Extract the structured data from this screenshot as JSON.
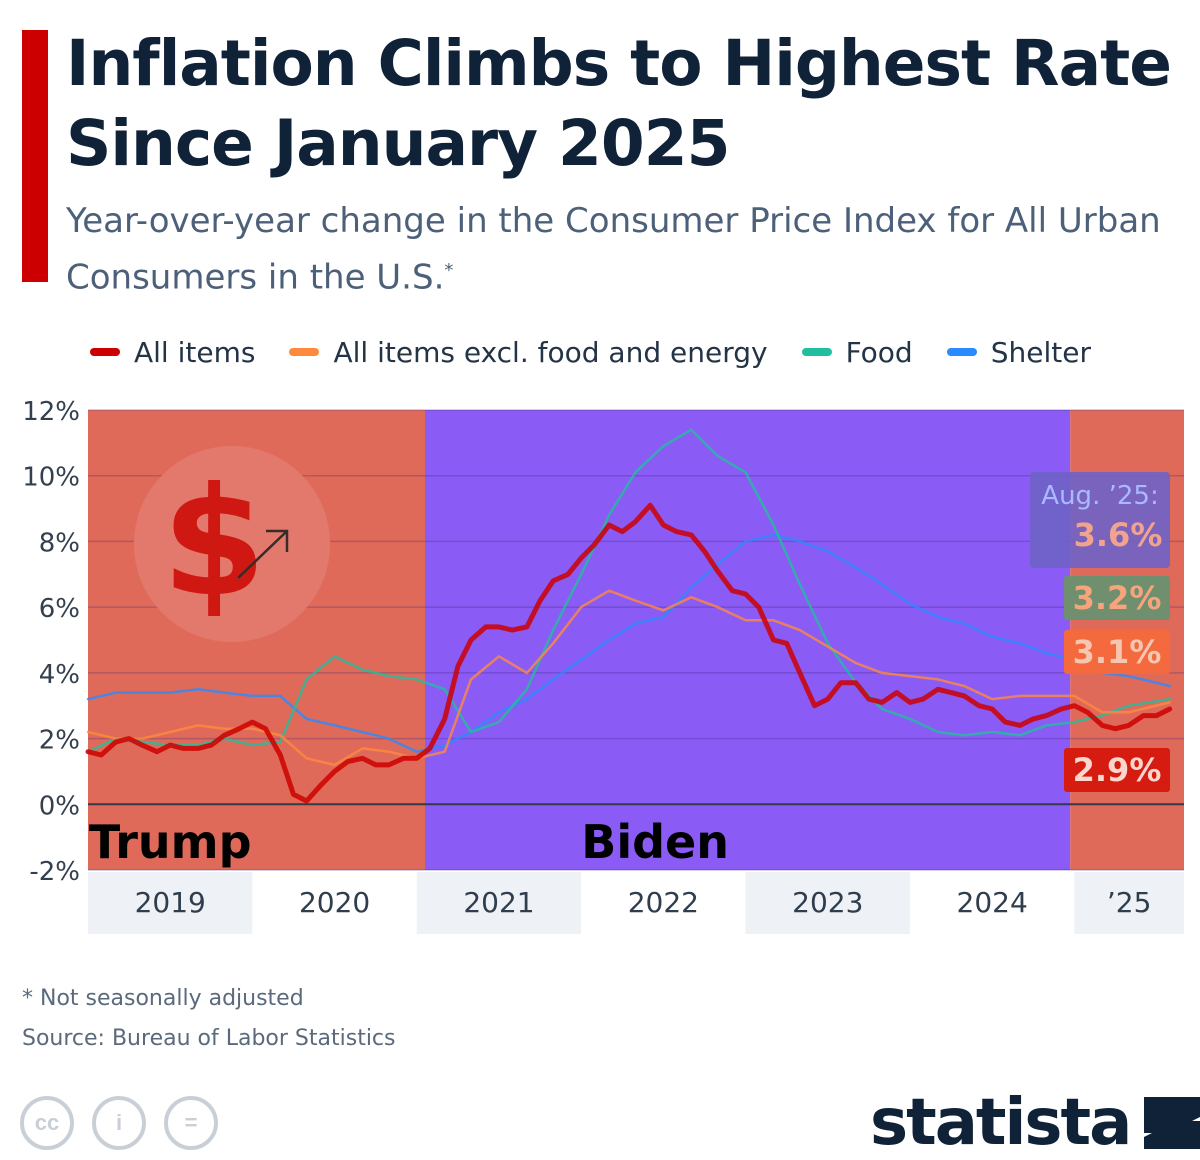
{
  "header": {
    "title": "Inflation Climbs to Highest Rate Since January 2025",
    "subtitle": "Year-over-year change in the Consumer Price Index for All Urban Consumers in the U.S.",
    "subtitle_mark": "*",
    "accent_color": "#cc0000"
  },
  "legend": [
    {
      "label": "All items",
      "color": "#cc0000"
    },
    {
      "label": "All items excl. food and energy",
      "color": "#ff8a3d"
    },
    {
      "label": "Food",
      "color": "#1fbf9f"
    },
    {
      "label": "Shelter",
      "color": "#2a8bff"
    }
  ],
  "footer": {
    "footnote": "* Not seasonally adjusted",
    "source": "Source: Bureau of Labor Statistics",
    "brand": "statista",
    "license_icons": [
      "cc-icon",
      "attribution-icon",
      "no-derivatives-icon"
    ],
    "license_glyphs": [
      "cc",
      "i",
      "="
    ]
  },
  "chart_data": {
    "type": "line",
    "title": "Inflation Climbs to Highest Rate Since January 2025",
    "ylabel": "",
    "xlabel": "",
    "ylim": [
      -2,
      12
    ],
    "xlim": [
      2019.0,
      2025.667
    ],
    "y_ticks": [
      12,
      10,
      8,
      6,
      4,
      2,
      0,
      -2
    ],
    "y_tick_labels": [
      "12%",
      "10%",
      "8%",
      "6%",
      "4%",
      "2%",
      "0%",
      "-2%"
    ],
    "x_categories": [
      {
        "label": "2019",
        "start": 2019.0,
        "end": 2020.0
      },
      {
        "label": "2020",
        "start": 2020.0,
        "end": 2021.0
      },
      {
        "label": "2021",
        "start": 2021.0,
        "end": 2022.0
      },
      {
        "label": "2022",
        "start": 2022.0,
        "end": 2023.0
      },
      {
        "label": "2023",
        "start": 2023.0,
        "end": 2024.0
      },
      {
        "label": "2024",
        "start": 2024.0,
        "end": 2025.0
      },
      {
        "label": "’25",
        "start": 2025.0,
        "end": 2025.667
      }
    ],
    "periods": [
      {
        "label": "Trump",
        "start": 2019.0,
        "end": 2021.05,
        "color": "#e06a5a",
        "label_x": 2019.5
      },
      {
        "label": "Biden",
        "start": 2021.05,
        "end": 2024.975,
        "color": "#8a5cf5",
        "label_x": 2022.45
      },
      {
        "label": "",
        "start": 2024.975,
        "end": 2025.667,
        "color": "#e06a5a",
        "label_x": 2025.3
      }
    ],
    "series": [
      {
        "name": "All items",
        "color": "#cc0000",
        "width": 5,
        "x": [
          2019.0,
          2019.08,
          2019.17,
          2019.25,
          2019.33,
          2019.42,
          2019.5,
          2019.58,
          2019.67,
          2019.75,
          2019.83,
          2019.92,
          2020.0,
          2020.08,
          2020.17,
          2020.25,
          2020.33,
          2020.42,
          2020.5,
          2020.58,
          2020.67,
          2020.75,
          2020.83,
          2020.92,
          2021.0,
          2021.08,
          2021.17,
          2021.25,
          2021.33,
          2021.42,
          2021.5,
          2021.58,
          2021.67,
          2021.75,
          2021.83,
          2021.92,
          2022.0,
          2022.08,
          2022.17,
          2022.25,
          2022.33,
          2022.42,
          2022.5,
          2022.58,
          2022.67,
          2022.75,
          2022.83,
          2022.92,
          2023.0,
          2023.08,
          2023.17,
          2023.25,
          2023.33,
          2023.42,
          2023.5,
          2023.58,
          2023.67,
          2023.75,
          2023.83,
          2023.92,
          2024.0,
          2024.08,
          2024.17,
          2024.25,
          2024.33,
          2024.42,
          2024.5,
          2024.58,
          2024.67,
          2024.75,
          2024.83,
          2024.92,
          2025.0,
          2025.08,
          2025.17,
          2025.25,
          2025.33,
          2025.42,
          2025.5,
          2025.58
        ],
        "values": [
          1.6,
          1.5,
          1.9,
          2.0,
          1.8,
          1.6,
          1.8,
          1.7,
          1.7,
          1.8,
          2.1,
          2.3,
          2.5,
          2.3,
          1.5,
          0.3,
          0.1,
          0.6,
          1.0,
          1.3,
          1.4,
          1.2,
          1.2,
          1.4,
          1.4,
          1.7,
          2.6,
          4.2,
          5.0,
          5.4,
          5.4,
          5.3,
          5.4,
          6.2,
          6.8,
          7.0,
          7.5,
          7.9,
          8.5,
          8.3,
          8.6,
          9.1,
          8.5,
          8.3,
          8.2,
          7.7,
          7.1,
          6.5,
          6.4,
          6.0,
          5.0,
          4.9,
          4.0,
          3.0,
          3.2,
          3.7,
          3.7,
          3.2,
          3.1,
          3.4,
          3.1,
          3.2,
          3.5,
          3.4,
          3.3,
          3.0,
          2.9,
          2.5,
          2.4,
          2.6,
          2.7,
          2.9,
          3.0,
          2.8,
          2.4,
          2.3,
          2.4,
          2.7,
          2.7,
          2.9
        ]
      },
      {
        "name": "All items excl. food and energy",
        "color": "#ff8a3d",
        "width": 2.5,
        "x": [
          2019.0,
          2019.17,
          2019.33,
          2019.5,
          2019.67,
          2019.83,
          2020.0,
          2020.17,
          2020.33,
          2020.5,
          2020.67,
          2020.83,
          2021.0,
          2021.17,
          2021.33,
          2021.5,
          2021.67,
          2021.83,
          2022.0,
          2022.17,
          2022.33,
          2022.5,
          2022.67,
          2022.83,
          2023.0,
          2023.17,
          2023.33,
          2023.5,
          2023.67,
          2023.83,
          2024.0,
          2024.17,
          2024.33,
          2024.5,
          2024.67,
          2024.83,
          2025.0,
          2025.17,
          2025.33,
          2025.58
        ],
        "values": [
          2.2,
          2.0,
          2.0,
          2.2,
          2.4,
          2.3,
          2.3,
          2.1,
          1.4,
          1.2,
          1.7,
          1.6,
          1.4,
          1.6,
          3.8,
          4.5,
          4.0,
          4.9,
          6.0,
          6.5,
          6.2,
          5.9,
          6.3,
          6.0,
          5.6,
          5.6,
          5.3,
          4.8,
          4.3,
          4.0,
          3.9,
          3.8,
          3.6,
          3.2,
          3.3,
          3.3,
          3.3,
          2.8,
          2.8,
          3.1
        ]
      },
      {
        "name": "Food",
        "color": "#1fbf9f",
        "width": 2.5,
        "x": [
          2019.0,
          2019.17,
          2019.33,
          2019.5,
          2019.67,
          2019.83,
          2020.0,
          2020.17,
          2020.33,
          2020.5,
          2020.67,
          2020.83,
          2021.0,
          2021.17,
          2021.33,
          2021.5,
          2021.67,
          2021.83,
          2022.0,
          2022.17,
          2022.33,
          2022.5,
          2022.67,
          2022.83,
          2023.0,
          2023.17,
          2023.33,
          2023.5,
          2023.67,
          2023.83,
          2024.0,
          2024.17,
          2024.33,
          2024.5,
          2024.67,
          2024.83,
          2025.0,
          2025.17,
          2025.33,
          2025.58
        ],
        "values": [
          1.6,
          2.0,
          1.9,
          1.8,
          1.8,
          2.0,
          1.8,
          1.9,
          3.8,
          4.5,
          4.1,
          3.9,
          3.8,
          3.5,
          2.2,
          2.5,
          3.5,
          5.3,
          7.0,
          8.8,
          10.1,
          10.9,
          11.4,
          10.6,
          10.1,
          8.5,
          6.7,
          4.9,
          3.7,
          2.9,
          2.6,
          2.2,
          2.1,
          2.2,
          2.1,
          2.4,
          2.5,
          2.7,
          3.0,
          3.2
        ]
      },
      {
        "name": "Shelter",
        "color": "#2a8bff",
        "width": 2.5,
        "x": [
          2019.0,
          2019.17,
          2019.33,
          2019.5,
          2019.67,
          2019.83,
          2020.0,
          2020.17,
          2020.33,
          2020.5,
          2020.67,
          2020.83,
          2021.0,
          2021.17,
          2021.33,
          2021.5,
          2021.67,
          2021.83,
          2022.0,
          2022.17,
          2022.33,
          2022.5,
          2022.67,
          2022.83,
          2023.0,
          2023.17,
          2023.33,
          2023.5,
          2023.67,
          2023.83,
          2024.0,
          2024.17,
          2024.33,
          2024.5,
          2024.67,
          2024.83,
          2025.0,
          2025.17,
          2025.33,
          2025.58
        ],
        "values": [
          3.2,
          3.4,
          3.4,
          3.4,
          3.5,
          3.4,
          3.3,
          3.3,
          2.6,
          2.4,
          2.2,
          2.0,
          1.6,
          1.8,
          2.2,
          2.8,
          3.2,
          3.8,
          4.4,
          5.0,
          5.5,
          5.7,
          6.6,
          7.3,
          8.0,
          8.2,
          8.0,
          7.7,
          7.2,
          6.7,
          6.1,
          5.7,
          5.5,
          5.1,
          4.9,
          4.6,
          4.4,
          4.0,
          3.9,
          3.6
        ]
      }
    ],
    "latest_label": "Aug. ’25:",
    "end_labels": [
      {
        "series": "Shelter",
        "value": 3.6,
        "text": "3.6%",
        "bg": "#6e63c6",
        "fg": "#f2a38e"
      },
      {
        "series": "Food",
        "value": 3.2,
        "text": "3.2%",
        "bg": "#6f8f6f",
        "fg": "#f6a47c"
      },
      {
        "series": "All items excl. food and energy",
        "value": 3.1,
        "text": "3.1%",
        "bg": "#f4693e",
        "fg": "#f6c7b0"
      },
      {
        "series": "All items",
        "value": 2.9,
        "text": "2.9%",
        "bg": "#d61b10",
        "fg": "#fbd6cd"
      }
    ],
    "zero_line": true,
    "grid": true
  }
}
